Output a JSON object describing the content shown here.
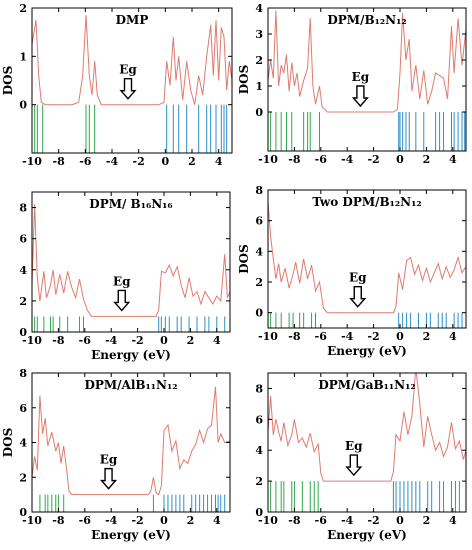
{
  "colors": {
    "dos_curve": "#e07a6e",
    "valence_states": "#2ea84a",
    "conduction_states": "#2d8fc9",
    "arrow": "#000000"
  },
  "chart_data": [
    {
      "type": "line",
      "title": "DMP",
      "xlabel": "",
      "ylabel": "DOS",
      "xlim": [
        -10,
        5
      ],
      "ylim": [
        -1,
        2
      ],
      "xticks": [
        -10,
        -8,
        -6,
        -4,
        -2,
        0,
        2,
        4
      ],
      "yticks": [
        0,
        1,
        2
      ],
      "gap_label": "Eg",
      "gap_arrow_x": -2.8,
      "baseline": 0,
      "curve": [
        [
          -10,
          1.25
        ],
        [
          -9.7,
          1.75
        ],
        [
          -9.5,
          0.6
        ],
        [
          -9.3,
          0.05
        ],
        [
          -9,
          0
        ],
        [
          -8.5,
          0
        ],
        [
          -8,
          0
        ],
        [
          -7.5,
          0
        ],
        [
          -7,
          0
        ],
        [
          -6.5,
          0.05
        ],
        [
          -6.2,
          0.6
        ],
        [
          -5.95,
          1.85
        ],
        [
          -5.7,
          0.6
        ],
        [
          -5.5,
          0.2
        ],
        [
          -5.3,
          0.9
        ],
        [
          -5.1,
          0.2
        ],
        [
          -4.8,
          0
        ],
        [
          -4,
          0
        ],
        [
          -2,
          0
        ],
        [
          -0.5,
          0
        ],
        [
          -0.1,
          0.05
        ],
        [
          0.1,
          0.9
        ],
        [
          0.35,
          0.4
        ],
        [
          0.6,
          1.4
        ],
        [
          0.8,
          0.5
        ],
        [
          1.0,
          1.0
        ],
        [
          1.3,
          0.1
        ],
        [
          1.6,
          0.9
        ],
        [
          1.9,
          0.3
        ],
        [
          2.2,
          0
        ],
        [
          2.5,
          0.6
        ],
        [
          2.8,
          0.2
        ],
        [
          3.1,
          1.0
        ],
        [
          3.4,
          1.65
        ],
        [
          3.6,
          0.6
        ],
        [
          3.8,
          1.75
        ],
        [
          4.0,
          0.5
        ],
        [
          4.2,
          1.6
        ],
        [
          4.4,
          1.4
        ],
        [
          4.6,
          0.3
        ],
        [
          4.8,
          0.9
        ],
        [
          5,
          0.5
        ]
      ],
      "valence_states": [
        -9.8,
        -9.6,
        -9.2,
        -5.95,
        -5.7,
        -5.3
      ],
      "conduction_states": [
        0.1,
        0.6,
        1.0,
        1.6,
        2.5,
        3.1,
        3.4,
        3.8,
        4.2,
        4.4,
        4.6
      ]
    },
    {
      "type": "line",
      "title": "DPM/B₁₂N₁₂",
      "xlabel": "",
      "ylabel": "DOS",
      "xlim": [
        -10,
        5
      ],
      "ylim": [
        -1.5,
        4
      ],
      "xticks": [
        -10,
        -8,
        -6,
        -4,
        -2,
        0,
        2,
        4
      ],
      "yticks": [
        0,
        1,
        2,
        3,
        4
      ],
      "gap_label": "Eg",
      "gap_arrow_x": -3.0,
      "baseline": 0,
      "curve": [
        [
          -10,
          1.2
        ],
        [
          -9.8,
          2.0
        ],
        [
          -9.6,
          1.3
        ],
        [
          -9.4,
          3.9
        ],
        [
          -9.2,
          1.0
        ],
        [
          -9.0,
          1.8
        ],
        [
          -8.8,
          1.5
        ],
        [
          -8.6,
          2.2
        ],
        [
          -8.4,
          0.8
        ],
        [
          -8.2,
          1.9
        ],
        [
          -8.0,
          1.0
        ],
        [
          -7.8,
          1.5
        ],
        [
          -7.6,
          0.6
        ],
        [
          -7.3,
          1.2
        ],
        [
          -7.0,
          1.7
        ],
        [
          -6.8,
          3.6
        ],
        [
          -6.6,
          1.0
        ],
        [
          -6.4,
          0.3
        ],
        [
          -6.1,
          1.0
        ],
        [
          -5.9,
          0.2
        ],
        [
          -5.5,
          0
        ],
        [
          -4,
          0
        ],
        [
          -2,
          0
        ],
        [
          -0.5,
          0
        ],
        [
          -0.2,
          0.1
        ],
        [
          0.0,
          1.5
        ],
        [
          0.2,
          3.8
        ],
        [
          0.45,
          2.0
        ],
        [
          0.7,
          2.8
        ],
        [
          0.9,
          0.8
        ],
        [
          1.2,
          1.8
        ],
        [
          1.5,
          0.5
        ],
        [
          1.8,
          1.6
        ],
        [
          2.1,
          0.3
        ],
        [
          2.4,
          0.8
        ],
        [
          2.7,
          1.5
        ],
        [
          3.0,
          1.4
        ],
        [
          3.3,
          1.3
        ],
        [
          3.6,
          0.5
        ],
        [
          3.9,
          3.3
        ],
        [
          4.1,
          1.5
        ],
        [
          4.4,
          3.6
        ],
        [
          4.7,
          1.8
        ],
        [
          5,
          3.2
        ]
      ],
      "valence_states": [
        -10,
        -9.8,
        -9.4,
        -9.0,
        -8.6,
        -8.2,
        -7.3,
        -7.0,
        -6.8,
        -6.1
      ],
      "conduction_states": [
        -0.1,
        0.0,
        0.2,
        0.45,
        0.7,
        1.2,
        1.8,
        2.7,
        3.0,
        3.3,
        3.9,
        4.1,
        4.4,
        4.7,
        4.9
      ]
    },
    {
      "type": "line",
      "title": "DPM/ B₁₆N₁₆",
      "xlabel": "Energy (eV)",
      "ylabel": "",
      "xlim": [
        -10,
        5
      ],
      "ylim": [
        0,
        9
      ],
      "xticks": [
        -10,
        -8,
        -6,
        -4,
        -2,
        0,
        2,
        4
      ],
      "yticks": [
        0,
        2,
        4,
        6,
        8
      ],
      "gap_label": "Eg",
      "gap_arrow_x": -3.2,
      "baseline": 1,
      "curve": [
        [
          -10,
          3.0
        ],
        [
          -9.8,
          8.2
        ],
        [
          -9.6,
          3.5
        ],
        [
          -9.4,
          2.0
        ],
        [
          -9.1,
          3.9
        ],
        [
          -8.9,
          2.2
        ],
        [
          -8.6,
          3.0
        ],
        [
          -8.4,
          4.0
        ],
        [
          -8.2,
          2.4
        ],
        [
          -7.9,
          3.7
        ],
        [
          -7.6,
          2.5
        ],
        [
          -7.3,
          3.9
        ],
        [
          -7.0,
          2.9
        ],
        [
          -6.7,
          2.2
        ],
        [
          -6.4,
          3.4
        ],
        [
          -6.1,
          2.1
        ],
        [
          -5.8,
          1.4
        ],
        [
          -5.5,
          1.0
        ],
        [
          -4,
          1.0
        ],
        [
          -2,
          1.0
        ],
        [
          -0.6,
          1.0
        ],
        [
          -0.4,
          1.4
        ],
        [
          -0.2,
          3.9
        ],
        [
          0.1,
          3.8
        ],
        [
          0.4,
          4.3
        ],
        [
          0.7,
          3.6
        ],
        [
          1.0,
          4.2
        ],
        [
          1.3,
          3.0
        ],
        [
          1.6,
          2.2
        ],
        [
          1.9,
          3.5
        ],
        [
          2.2,
          2.3
        ],
        [
          2.5,
          2.6
        ],
        [
          2.8,
          1.8
        ],
        [
          3.1,
          2.6
        ],
        [
          3.4,
          2.2
        ],
        [
          3.7,
          1.8
        ],
        [
          4.0,
          2.3
        ],
        [
          4.3,
          2.0
        ],
        [
          4.6,
          5.0
        ],
        [
          4.8,
          2.2
        ],
        [
          5,
          2.6
        ]
      ],
      "valence_states": [
        -10,
        -9.8,
        -9.6,
        -9.1,
        -8.6,
        -8.4,
        -7.9,
        -7.3,
        -6.4,
        -6.1
      ],
      "conduction_states": [
        -0.4,
        -0.2,
        0.1,
        0.4,
        1.0,
        1.3,
        1.9,
        2.5,
        3.1,
        3.4,
        4.0,
        4.6
      ]
    },
    {
      "type": "line",
      "title": "Two DPM/B₁₂N₁₂",
      "xlabel": "Energy (eV)",
      "ylabel": "DOS",
      "xlim": [
        -10,
        5
      ],
      "ylim": [
        -1,
        8
      ],
      "xticks": [
        -10,
        -8,
        -6,
        -4,
        -2,
        0,
        2,
        4
      ],
      "yticks": [
        0,
        2,
        4,
        6,
        8
      ],
      "gap_label": "Eg",
      "gap_arrow_x": -3.2,
      "baseline": 0,
      "curve": [
        [
          -10,
          7.2
        ],
        [
          -9.8,
          5.0
        ],
        [
          -9.6,
          3.5
        ],
        [
          -9.4,
          2.2
        ],
        [
          -9.2,
          3.2
        ],
        [
          -9.0,
          2.0
        ],
        [
          -8.7,
          2.9
        ],
        [
          -8.4,
          1.6
        ],
        [
          -8.1,
          2.5
        ],
        [
          -7.9,
          3.3
        ],
        [
          -7.6,
          1.9
        ],
        [
          -7.3,
          3.5
        ],
        [
          -7.0,
          2.2
        ],
        [
          -6.7,
          3.1
        ],
        [
          -6.4,
          1.4
        ],
        [
          -6.1,
          2.0
        ],
        [
          -5.8,
          0.3
        ],
        [
          -5.5,
          0
        ],
        [
          -4,
          0
        ],
        [
          -2,
          0
        ],
        [
          -0.5,
          0
        ],
        [
          -0.3,
          0.4
        ],
        [
          -0.1,
          2.6
        ],
        [
          0.2,
          1.5
        ],
        [
          0.5,
          3.4
        ],
        [
          0.8,
          3.6
        ],
        [
          1.1,
          2.5
        ],
        [
          1.4,
          3.1
        ],
        [
          1.7,
          2.1
        ],
        [
          2.0,
          2.9
        ],
        [
          2.3,
          2.0
        ],
        [
          2.6,
          2.6
        ],
        [
          2.9,
          3.2
        ],
        [
          3.2,
          2.2
        ],
        [
          3.5,
          3.0
        ],
        [
          3.8,
          2.3
        ],
        [
          4.1,
          2.8
        ],
        [
          4.4,
          3.6
        ],
        [
          4.7,
          2.6
        ],
        [
          5,
          3.0
        ]
      ],
      "valence_states": [
        -10,
        -9.8,
        -9.4,
        -9.0,
        -8.4,
        -8.1,
        -7.6,
        -7.3,
        -6.7,
        -6.4
      ],
      "conduction_states": [
        -0.1,
        0.2,
        0.5,
        0.8,
        1.4,
        2.0,
        2.3,
        2.9,
        3.2,
        3.5,
        4.1,
        4.4,
        4.7
      ]
    },
    {
      "type": "line",
      "title": "DPM/AlB₁₁N₁₂",
      "xlabel": "Energy (eV)",
      "ylabel": "DOS",
      "xlim": [
        -10,
        5
      ],
      "ylim": [
        0,
        8
      ],
      "xticks": [
        -10,
        -8,
        -6,
        -4,
        -2,
        0,
        2,
        4
      ],
      "yticks": [
        0,
        2,
        4,
        6,
        8
      ],
      "gap_label": "Eg",
      "gap_arrow_x": -4.2,
      "baseline": 1,
      "curve": [
        [
          -10,
          2.0
        ],
        [
          -9.8,
          3.2
        ],
        [
          -9.6,
          2.4
        ],
        [
          -9.4,
          6.7
        ],
        [
          -9.2,
          4.5
        ],
        [
          -9.0,
          5.4
        ],
        [
          -8.8,
          3.8
        ],
        [
          -8.5,
          4.6
        ],
        [
          -8.2,
          3.5
        ],
        [
          -8.0,
          4.0
        ],
        [
          -7.8,
          2.8
        ],
        [
          -7.6,
          3.8
        ],
        [
          -7.4,
          2.6
        ],
        [
          -7.2,
          1.2
        ],
        [
          -7.0,
          1.0
        ],
        [
          -5,
          1.0
        ],
        [
          -3,
          1.0
        ],
        [
          -1.2,
          1.0
        ],
        [
          -1.0,
          1.2
        ],
        [
          -0.8,
          2.0
        ],
        [
          -0.6,
          1.1
        ],
        [
          -0.4,
          1.0
        ],
        [
          -0.2,
          1.5
        ],
        [
          0,
          4.7
        ],
        [
          0.3,
          5.0
        ],
        [
          0.6,
          3.5
        ],
        [
          0.9,
          4.1
        ],
        [
          1.2,
          2.5
        ],
        [
          1.5,
          3.0
        ],
        [
          1.8,
          2.8
        ],
        [
          2.1,
          3.5
        ],
        [
          2.4,
          3.9
        ],
        [
          2.7,
          4.7
        ],
        [
          3.0,
          4.0
        ],
        [
          3.3,
          4.8
        ],
        [
          3.6,
          5.0
        ],
        [
          3.9,
          7.2
        ],
        [
          4.1,
          4.0
        ],
        [
          4.3,
          4.5
        ],
        [
          4.6,
          4.0
        ],
        [
          5,
          4.1
        ]
      ],
      "valence_states": [
        -9.4,
        -9.0,
        -8.8,
        -8.5,
        -8.2,
        -8.0,
        -7.6
      ],
      "conduction_states": [
        -0.8,
        0,
        0.3,
        0.6,
        0.9,
        1.2,
        1.5,
        2.1,
        2.4,
        2.7,
        3.0,
        3.3,
        3.6,
        3.9,
        4.1,
        4.3,
        4.6
      ]
    },
    {
      "type": "line",
      "title": "DPM/GaB₁₁N₁₂",
      "xlabel": "Energy (eV)",
      "ylabel": "",
      "xlim": [
        -10,
        5
      ],
      "ylim": [
        0,
        9
      ],
      "xticks": [
        -10,
        -8,
        -6,
        -4,
        -2,
        0,
        2,
        4
      ],
      "yticks": [
        0,
        2,
        4,
        6,
        8
      ],
      "gap_label": "Eg",
      "gap_arrow_x": -3.5,
      "baseline": 2,
      "curve": [
        [
          -10,
          5.2
        ],
        [
          -9.8,
          7.5
        ],
        [
          -9.6,
          5.0
        ],
        [
          -9.4,
          6.0
        ],
        [
          -9.2,
          5.2
        ],
        [
          -9.0,
          4.6
        ],
        [
          -8.8,
          5.8
        ],
        [
          -8.5,
          4.3
        ],
        [
          -8.2,
          5.0
        ],
        [
          -8.0,
          6.0
        ],
        [
          -7.7,
          4.5
        ],
        [
          -7.4,
          4.8
        ],
        [
          -7.1,
          4.2
        ],
        [
          -6.8,
          5.1
        ],
        [
          -6.5,
          3.9
        ],
        [
          -6.2,
          4.4
        ],
        [
          -6.0,
          2.5
        ],
        [
          -5.8,
          2.0
        ],
        [
          -4,
          2.0
        ],
        [
          -2,
          2.0
        ],
        [
          -0.7,
          2.0
        ],
        [
          -0.5,
          2.6
        ],
        [
          -0.3,
          5.0
        ],
        [
          0,
          4.6
        ],
        [
          0.3,
          6.5
        ],
        [
          0.6,
          5.0
        ],
        [
          0.9,
          6.2
        ],
        [
          1.2,
          9.3
        ],
        [
          1.5,
          7.0
        ],
        [
          1.8,
          4.2
        ],
        [
          2.1,
          6.2
        ],
        [
          2.4,
          5.0
        ],
        [
          2.7,
          4.0
        ],
        [
          3.0,
          4.5
        ],
        [
          3.3,
          3.6
        ],
        [
          3.6,
          4.2
        ],
        [
          3.9,
          5.8
        ],
        [
          4.2,
          4.1
        ],
        [
          4.5,
          4.6
        ],
        [
          4.8,
          3.4
        ],
        [
          5,
          4.0
        ]
      ],
      "valence_states": [
        -9.8,
        -9.4,
        -9.0,
        -8.8,
        -8.2,
        -8.0,
        -7.4,
        -6.8,
        -6.5,
        -6.2
      ],
      "conduction_states": [
        -0.5,
        -0.3,
        0,
        0.3,
        0.6,
        0.9,
        1.2,
        1.5,
        2.1,
        2.4,
        3.0,
        3.3,
        3.9,
        4.2,
        4.5
      ]
    }
  ]
}
